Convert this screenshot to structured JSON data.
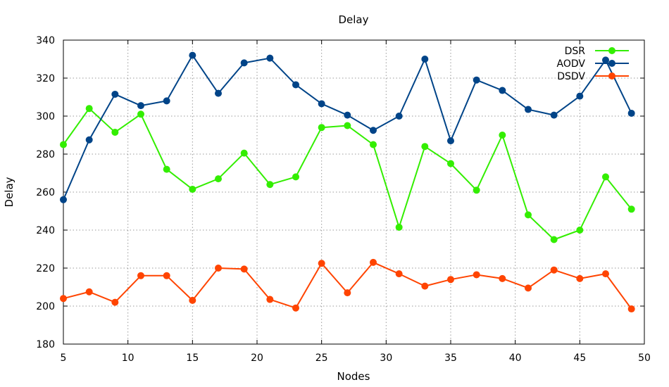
{
  "chart_data": {
    "type": "line",
    "title": "Delay",
    "xlabel": "Nodes",
    "ylabel": "Delay",
    "xlim": [
      5,
      50
    ],
    "ylim": [
      180,
      340
    ],
    "x_ticks": [
      5,
      10,
      15,
      20,
      25,
      30,
      35,
      40,
      45,
      50
    ],
    "y_ticks": [
      180,
      200,
      220,
      240,
      260,
      280,
      300,
      320,
      340
    ],
    "grid": true,
    "legend_position": "top-right",
    "x": [
      5,
      7,
      9,
      11,
      13,
      15,
      17,
      19,
      21,
      23,
      25,
      27,
      29,
      31,
      33,
      35,
      37,
      39,
      41,
      43,
      45,
      47,
      49
    ],
    "series": [
      {
        "name": "DSR",
        "color": "#33ee00",
        "values": [
          285,
          304,
          291.5,
          301,
          272,
          261.5,
          267,
          280.5,
          264,
          268,
          294,
          295,
          285,
          241.5,
          284,
          275,
          261,
          290,
          248,
          235,
          240,
          268,
          251
        ]
      },
      {
        "name": "AODV",
        "color": "#004488",
        "values": [
          256,
          287.5,
          311.5,
          305.5,
          308,
          332,
          312,
          328,
          330.5,
          316.5,
          306.5,
          300.5,
          292.5,
          300,
          330,
          287,
          319,
          313.5,
          303.5,
          300.5,
          310.5,
          329.5,
          301.5
        ]
      },
      {
        "name": "DSDV",
        "color": "#ff4400",
        "values": [
          204,
          207.5,
          202,
          216,
          216,
          203,
          220,
          219.5,
          203.5,
          199,
          222.5,
          207,
          223,
          217,
          210.5,
          214,
          216.5,
          214.5,
          209.5,
          219,
          214.5,
          217,
          198.5
        ]
      }
    ]
  }
}
